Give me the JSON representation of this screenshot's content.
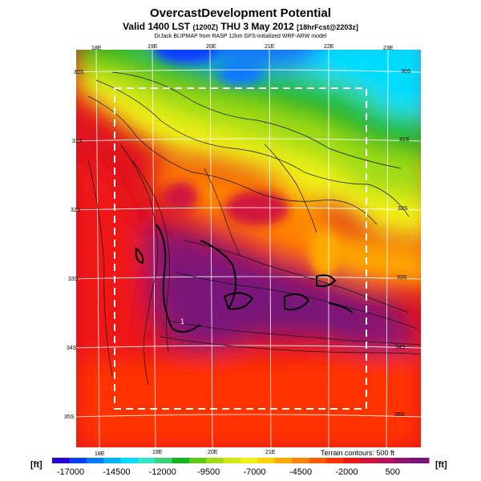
{
  "header": {
    "title": "OvercastDevelopment Potential",
    "subtitle_main": "Valid 1400 LST",
    "subtitle_z": "(1200Z)",
    "subtitle_day": "THU 3 May 2012",
    "subtitle_fcst": "[18hrFcst@2203z]",
    "credit": "DrJack BLIPMAP from RASP 12km GFS-initialized WRF-ARW model"
  },
  "map": {
    "lon_top": [
      "18E",
      "19E",
      "20E",
      "21E",
      "22E",
      "23E"
    ],
    "lon_bottom": [
      "18E",
      "19E",
      "20E",
      "21E"
    ],
    "lat_right": [
      "30S",
      "31S",
      "32S",
      "33S",
      "34S",
      "35S"
    ],
    "lat_left": [
      "30S",
      "31S",
      "32S",
      "33S",
      "34S",
      "35S"
    ],
    "marker": "1",
    "terrain_note": "Terrain contours: 500 ft"
  },
  "colorbar": {
    "unit": "[ft]",
    "tick_labels": [
      "-17000",
      "-14500",
      "-12000",
      "-9500",
      "-7000",
      "-4500",
      "-2000",
      "500"
    ],
    "colors": [
      "#2800d8",
      "#0a3cff",
      "#0a78ff",
      "#00b4ff",
      "#00dcff",
      "#32e6c8",
      "#3cd278",
      "#14b41e",
      "#5ac818",
      "#a0dc14",
      "#d2e614",
      "#f0f014",
      "#ffd200",
      "#ffaa00",
      "#ff8200",
      "#ff5a00",
      "#ff3200",
      "#f01414",
      "#d2143c",
      "#b4145a",
      "#8c1470",
      "#78147a"
    ]
  }
}
